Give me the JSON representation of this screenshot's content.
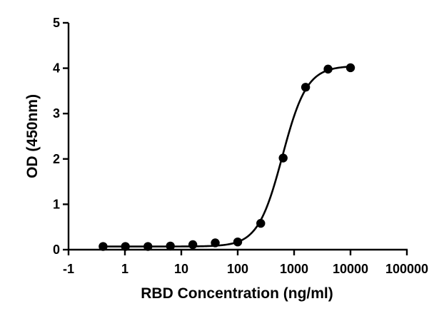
{
  "chart_data": {
    "type": "scatter",
    "title": "",
    "xlabel": "RBD Concentration (ng/ml)",
    "ylabel": "OD (450nm)",
    "x_scale": "log",
    "x_tick_labels": [
      "-1",
      "1",
      "10",
      "100",
      "1000",
      "10000",
      "100000"
    ],
    "y_ticks": [
      0,
      1,
      2,
      3,
      4,
      5
    ],
    "ylim": [
      0,
      5
    ],
    "grid": false,
    "legend": "none",
    "series": [
      {
        "points": [
          {
            "x": 0.41,
            "y": 0.07
          },
          {
            "x": 1.02,
            "y": 0.07
          },
          {
            "x": 2.56,
            "y": 0.07
          },
          {
            "x": 6.4,
            "y": 0.08
          },
          {
            "x": 16,
            "y": 0.11
          },
          {
            "x": 40,
            "y": 0.15
          },
          {
            "x": 100,
            "y": 0.17
          },
          {
            "x": 256,
            "y": 0.58
          },
          {
            "x": 640,
            "y": 2.02
          },
          {
            "x": 1600,
            "y": 3.58
          },
          {
            "x": 4000,
            "y": 3.98
          },
          {
            "x": 10000,
            "y": 4.01
          }
        ],
        "fit": {
          "model": "4PL",
          "bottom": 0.07,
          "top": 4.05,
          "ec50": 620,
          "hill": 2.0,
          "x_range": [
            0.41,
            10000
          ]
        },
        "color": "#000000"
      }
    ]
  }
}
